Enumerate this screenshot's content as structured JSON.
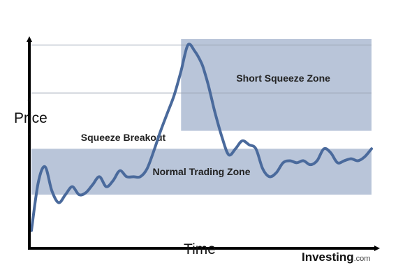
{
  "chart_data": {
    "type": "line",
    "title": "",
    "xlabel": "Time",
    "ylabel": "Price",
    "y_sign_top": "+",
    "y_sign_bottom": "-",
    "xlim": [
      0,
      100
    ],
    "ylim": [
      0,
      100
    ],
    "grid": false,
    "colors": {
      "line": "#4a6a9c",
      "zone_fill": "#b9c5d9",
      "axis": "#000000"
    },
    "zones": [
      {
        "name": "Short Squeeze Zone",
        "x": [
          44,
          100
        ],
        "y": [
          54,
          100
        ]
      },
      {
        "name": "Normal Trading Zone",
        "x": [
          0,
          100
        ],
        "y": [
          22,
          45
        ]
      }
    ],
    "reference_lines": [
      {
        "y": 97
      },
      {
        "y": 73
      }
    ],
    "annotations": [
      {
        "text": "Squeeze Breakout",
        "x": 27,
        "y": 49
      }
    ],
    "series": [
      {
        "x": [
          0,
          2,
          4,
          6,
          8,
          10,
          12,
          14,
          16,
          18,
          20,
          22,
          24,
          26,
          28,
          30,
          32,
          34,
          36,
          38,
          40,
          42,
          44,
          46,
          48,
          50,
          51,
          52,
          53,
          54,
          56,
          58,
          60,
          62,
          64,
          66,
          68,
          70,
          72,
          74,
          76,
          78,
          80,
          82,
          84,
          86,
          88,
          90,
          92,
          94,
          96,
          98,
          100
        ],
        "y": [
          4,
          28,
          36,
          24,
          18,
          22,
          26,
          22,
          23,
          27,
          31,
          26,
          29,
          34,
          31,
          31,
          31,
          35,
          44,
          54,
          63,
          72,
          84,
          97,
          94,
          88,
          83,
          77,
          70,
          63,
          51,
          42,
          45,
          49,
          47,
          45,
          35,
          31,
          33,
          38,
          39,
          38,
          39,
          37,
          39,
          45,
          43,
          38,
          39,
          40,
          39,
          41,
          45
        ]
      }
    ]
  },
  "logo": {
    "main": "Investing",
    "suffix": ".com"
  }
}
